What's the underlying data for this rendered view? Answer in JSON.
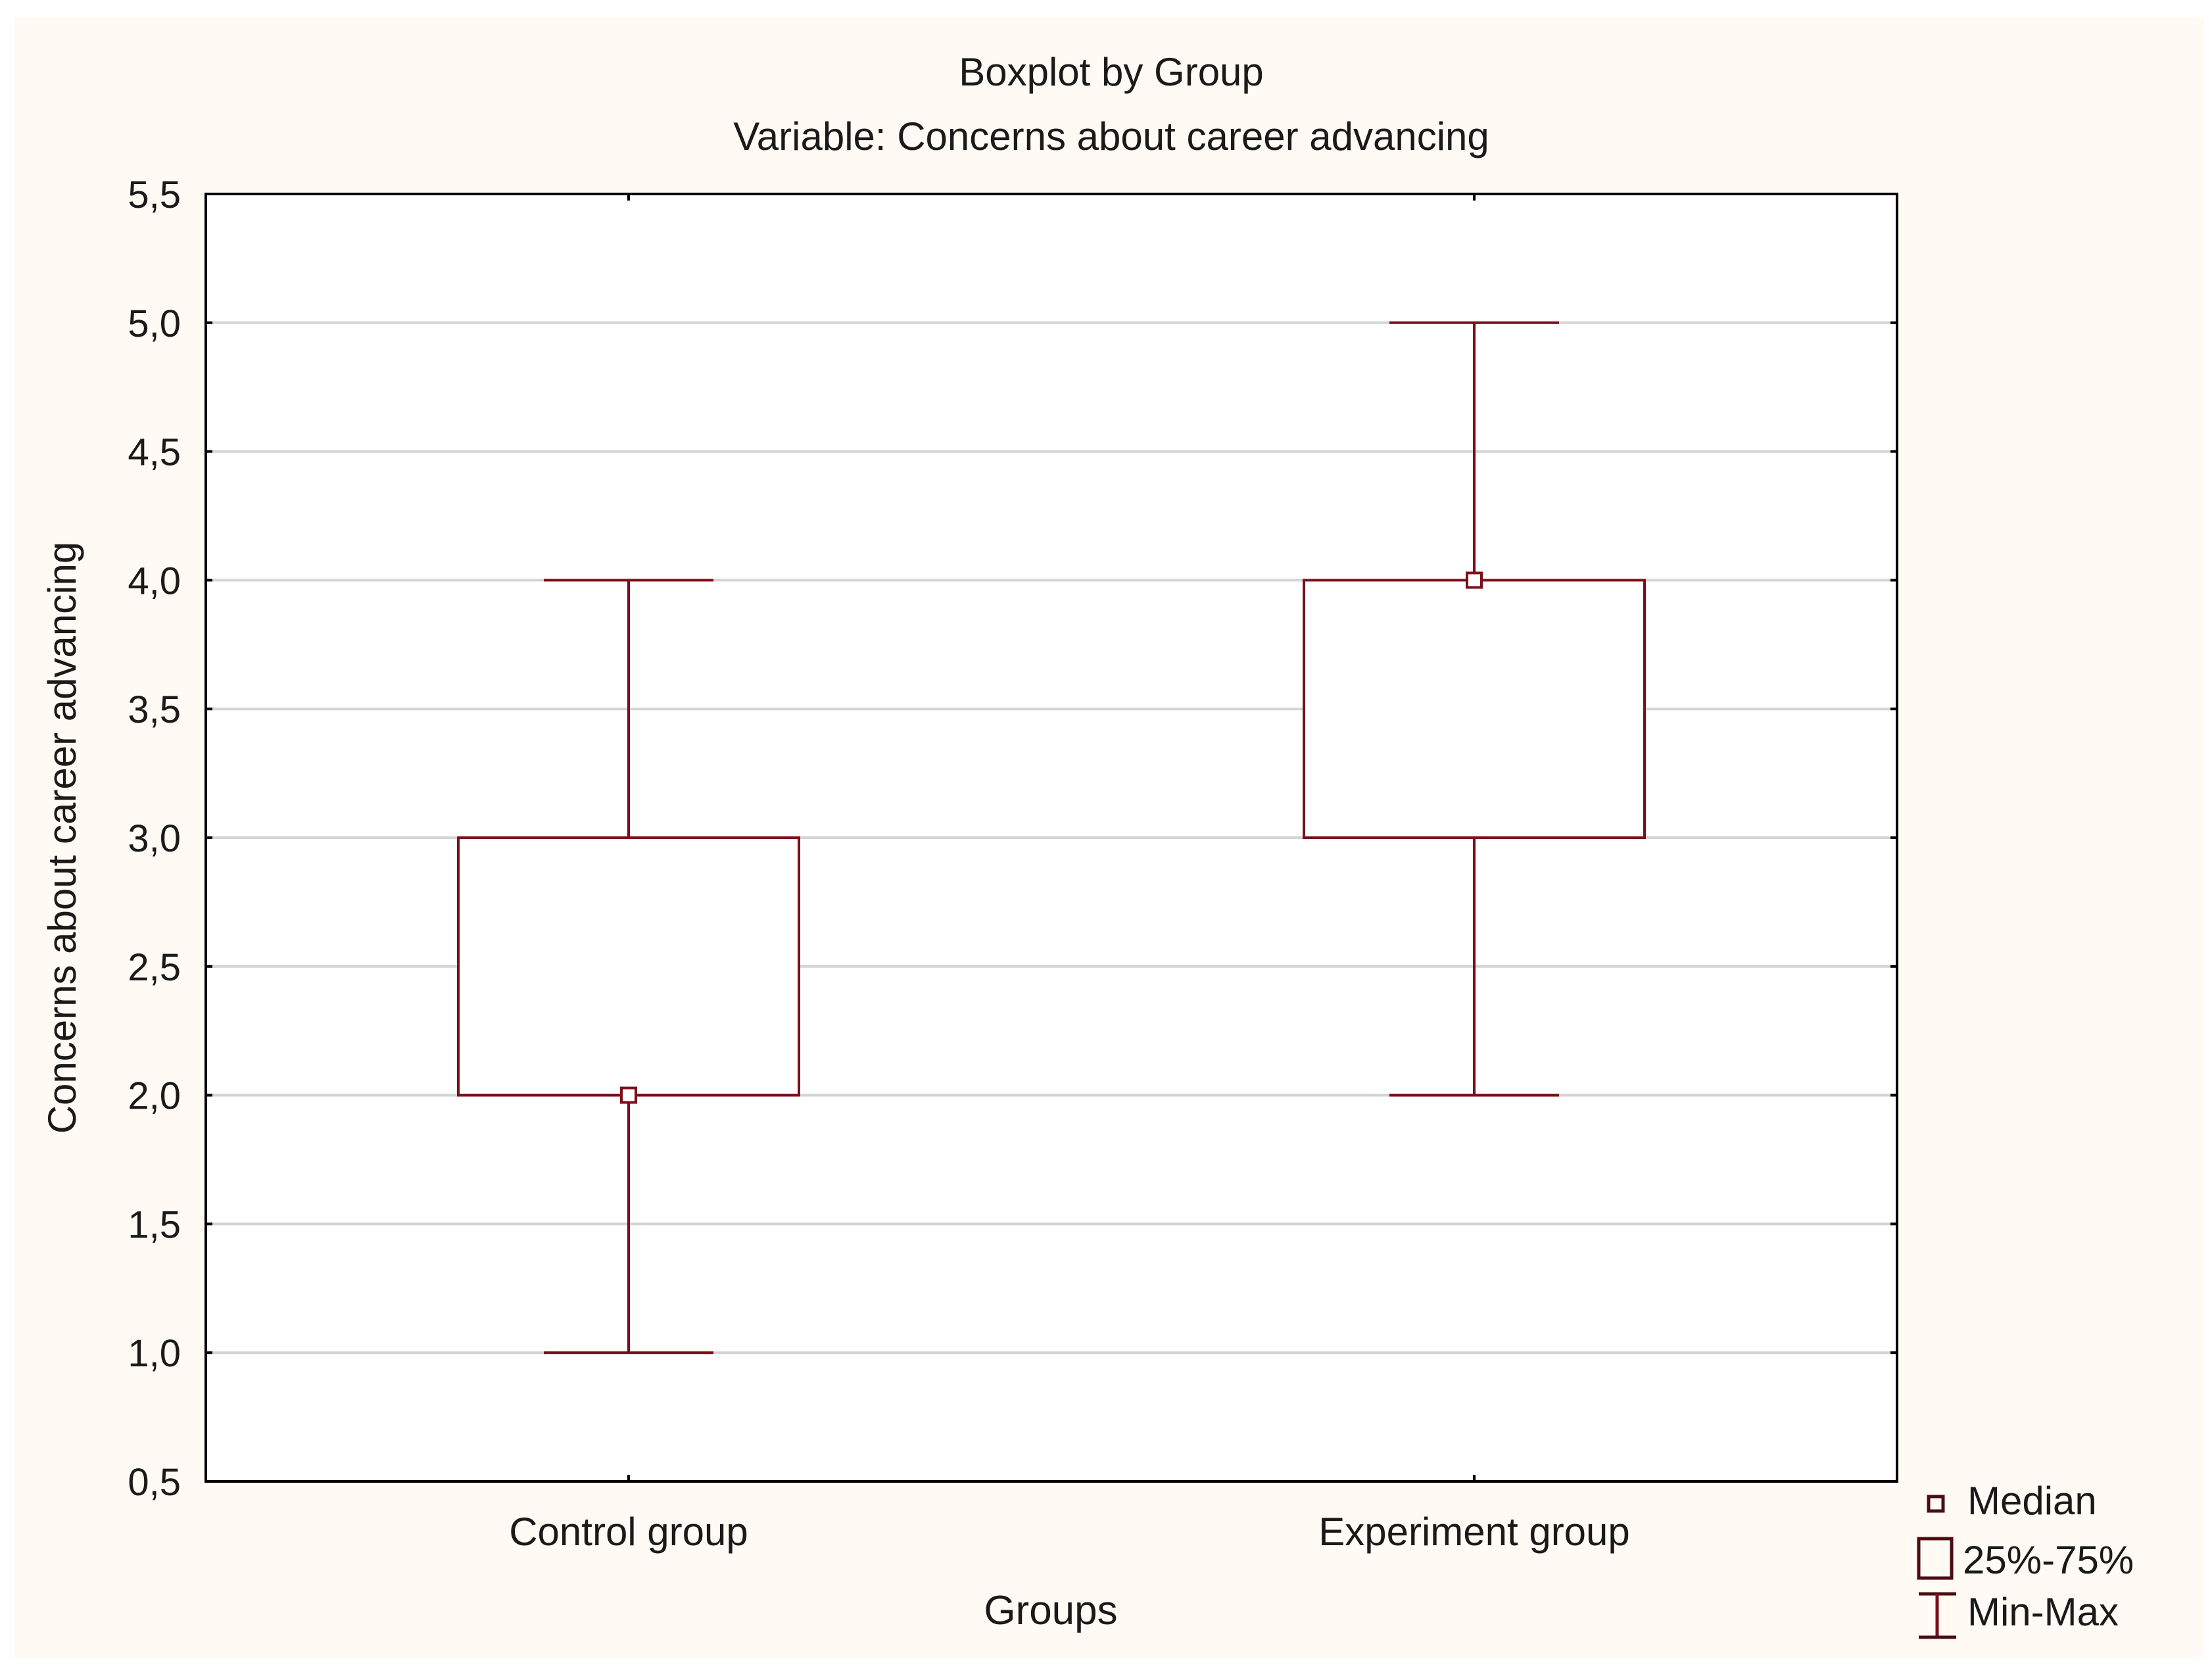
{
  "chart_data": {
    "type": "boxplot",
    "title": "Boxplot by Group",
    "subtitle": "Variable: Concerns about career advancing",
    "xlabel": "Groups",
    "ylabel": "Concerns about career advancing",
    "ylim": [
      0.5,
      5.5
    ],
    "yticks": [
      "0,5",
      "1,0",
      "1,5",
      "2,0",
      "2,5",
      "3,0",
      "3,5",
      "4,0",
      "4,5",
      "5,0",
      "5,5"
    ],
    "ytick_values": [
      0.5,
      1.0,
      1.5,
      2.0,
      2.5,
      3.0,
      3.5,
      4.0,
      4.5,
      5.0,
      5.5
    ],
    "grid": true,
    "categories": [
      "Control group",
      "Experiment group"
    ],
    "boxes": [
      {
        "category": "Control group",
        "min": 1.0,
        "q1": 2.0,
        "median": 2.0,
        "q3": 3.0,
        "max": 4.0
      },
      {
        "category": "Experiment group",
        "min": 2.0,
        "q1": 3.0,
        "median": 4.0,
        "q3": 4.0,
        "max": 5.0
      }
    ],
    "legend": {
      "placement": "bottom-right",
      "items": [
        "Median",
        "25%-75%",
        "Min-Max"
      ]
    },
    "colors": {
      "series": "#7b0f1a",
      "background": "#fffaf3",
      "plot": "#ffffff",
      "grid": "#d4d4d4"
    }
  }
}
